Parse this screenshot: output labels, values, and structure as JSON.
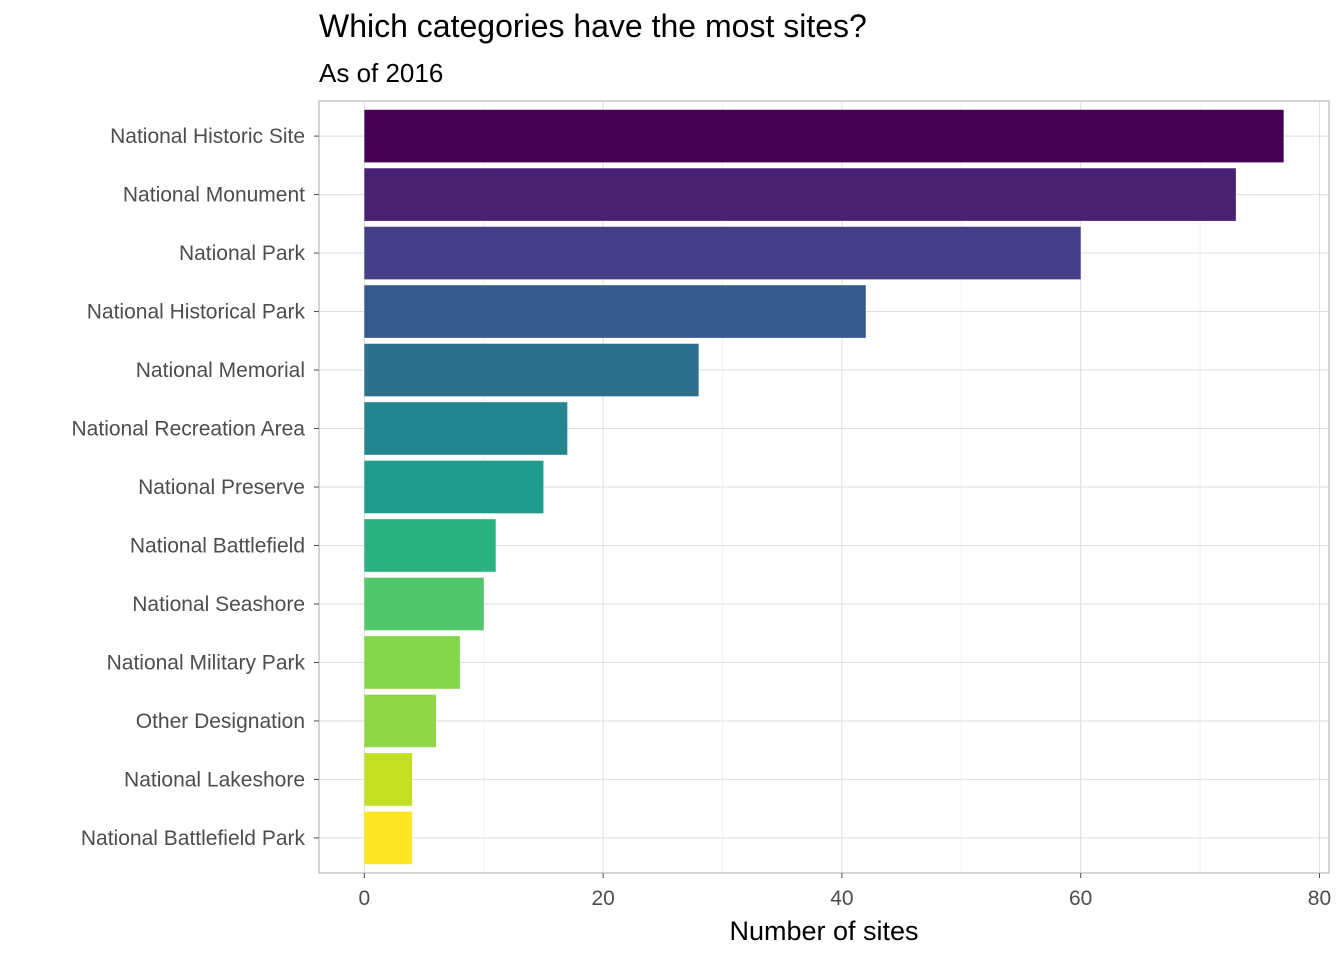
{
  "chart_data": {
    "type": "bar",
    "orientation": "horizontal",
    "title": "Which categories have the most sites?",
    "subtitle": "As of 2016",
    "xlabel": "Number of sites",
    "ylabel": "",
    "xlim": [
      -3.8,
      80.8
    ],
    "x_ticks": [
      0,
      20,
      40,
      60,
      80
    ],
    "x_tick_labels": [
      "0",
      "20",
      "40",
      "60",
      "80"
    ],
    "grid": true,
    "legend": "none",
    "categories": [
      "National Historic Site",
      "National Monument",
      "National Park",
      "National Historical Park",
      "National Memorial",
      "National Recreation Area",
      "National Preserve",
      "National Battlefield",
      "National Seashore",
      "National Military Park",
      "Other Designation",
      "National Lakeshore",
      "National Battlefield Park"
    ],
    "values": [
      77,
      73,
      60,
      42,
      28,
      17,
      15,
      11,
      10,
      8,
      6,
      4,
      4
    ],
    "colors": [
      "#440154",
      "#482173",
      "#433E85",
      "#38598C",
      "#2D708E",
      "#25858E",
      "#1E9B8A",
      "#2BB07F",
      "#51C56A",
      "#85D54A",
      "#8FD744",
      "#C2DF23",
      "#FDE725"
    ]
  }
}
